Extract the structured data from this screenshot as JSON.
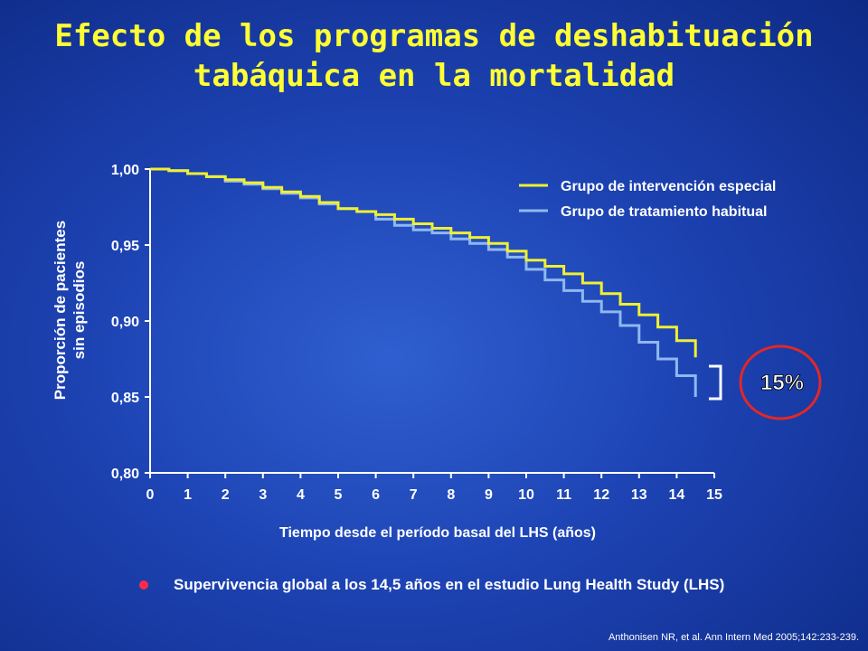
{
  "slide": {
    "title_line1": "Efecto de los programas de deshabituación",
    "title_line2": "tabáquica en la mortalidad",
    "bullet": "Supervivencia global a los 14,5 años en el estudio Lung Health Study (LHS)",
    "citation": "Anthonisen NR, et al. Ann Intern Med 2005;142:233-239.",
    "annotation": "15%",
    "colors": {
      "background": "#1d43b3",
      "title": "#ffff33",
      "series_special": "#f0f032",
      "series_usual": "#8fb8f0",
      "circle": "#e02828",
      "bullet": "#ff2a4a"
    }
  },
  "chart_data": {
    "type": "line",
    "xlabel": "Tiempo desde el período basal del LHS (años)",
    "ylabel_line1": "Proporción de pacientes",
    "ylabel_line2": "sin episodios",
    "xlim": [
      0,
      15
    ],
    "ylim": [
      0.8,
      1.0
    ],
    "x_ticks": [
      "0",
      "1",
      "2",
      "3",
      "4",
      "5",
      "6",
      "7",
      "8",
      "9",
      "10",
      "11",
      "12",
      "13",
      "14",
      "15"
    ],
    "y_ticks": [
      "0,80",
      "0,85",
      "0,90",
      "0,95",
      "1,00"
    ],
    "y_tick_values": [
      0.8,
      0.85,
      0.9,
      0.95,
      1.0
    ],
    "legend_position": "top-right",
    "series": [
      {
        "name": "Grupo de intervención especial",
        "color": "#f0f032",
        "x": [
          0,
          0.5,
          1,
          1.5,
          2,
          2.5,
          3,
          3.5,
          4,
          4.5,
          5,
          5.5,
          6,
          6.5,
          7,
          7.5,
          8,
          8.5,
          9,
          9.5,
          10,
          10.5,
          11,
          11.5,
          12,
          12.5,
          13,
          13.5,
          14,
          14.5
        ],
        "values": [
          1.0,
          0.999,
          0.997,
          0.995,
          0.993,
          0.991,
          0.988,
          0.985,
          0.982,
          0.978,
          0.974,
          0.972,
          0.97,
          0.967,
          0.964,
          0.961,
          0.958,
          0.955,
          0.951,
          0.946,
          0.94,
          0.936,
          0.931,
          0.925,
          0.918,
          0.911,
          0.904,
          0.896,
          0.887,
          0.876
        ]
      },
      {
        "name": "Grupo de tratamiento habitual",
        "color": "#8fb8f0",
        "x": [
          0,
          0.5,
          1,
          1.5,
          2,
          2.5,
          3,
          3.5,
          4,
          4.5,
          5,
          5.5,
          6,
          6.5,
          7,
          7.5,
          8,
          8.5,
          9,
          9.5,
          10,
          10.5,
          11,
          11.5,
          12,
          12.5,
          13,
          13.5,
          14,
          14.5
        ],
        "values": [
          1.0,
          0.999,
          0.997,
          0.995,
          0.992,
          0.99,
          0.987,
          0.984,
          0.981,
          0.977,
          0.974,
          0.972,
          0.967,
          0.963,
          0.96,
          0.958,
          0.954,
          0.951,
          0.947,
          0.942,
          0.934,
          0.927,
          0.92,
          0.913,
          0.906,
          0.897,
          0.886,
          0.875,
          0.864,
          0.85
        ]
      }
    ]
  }
}
